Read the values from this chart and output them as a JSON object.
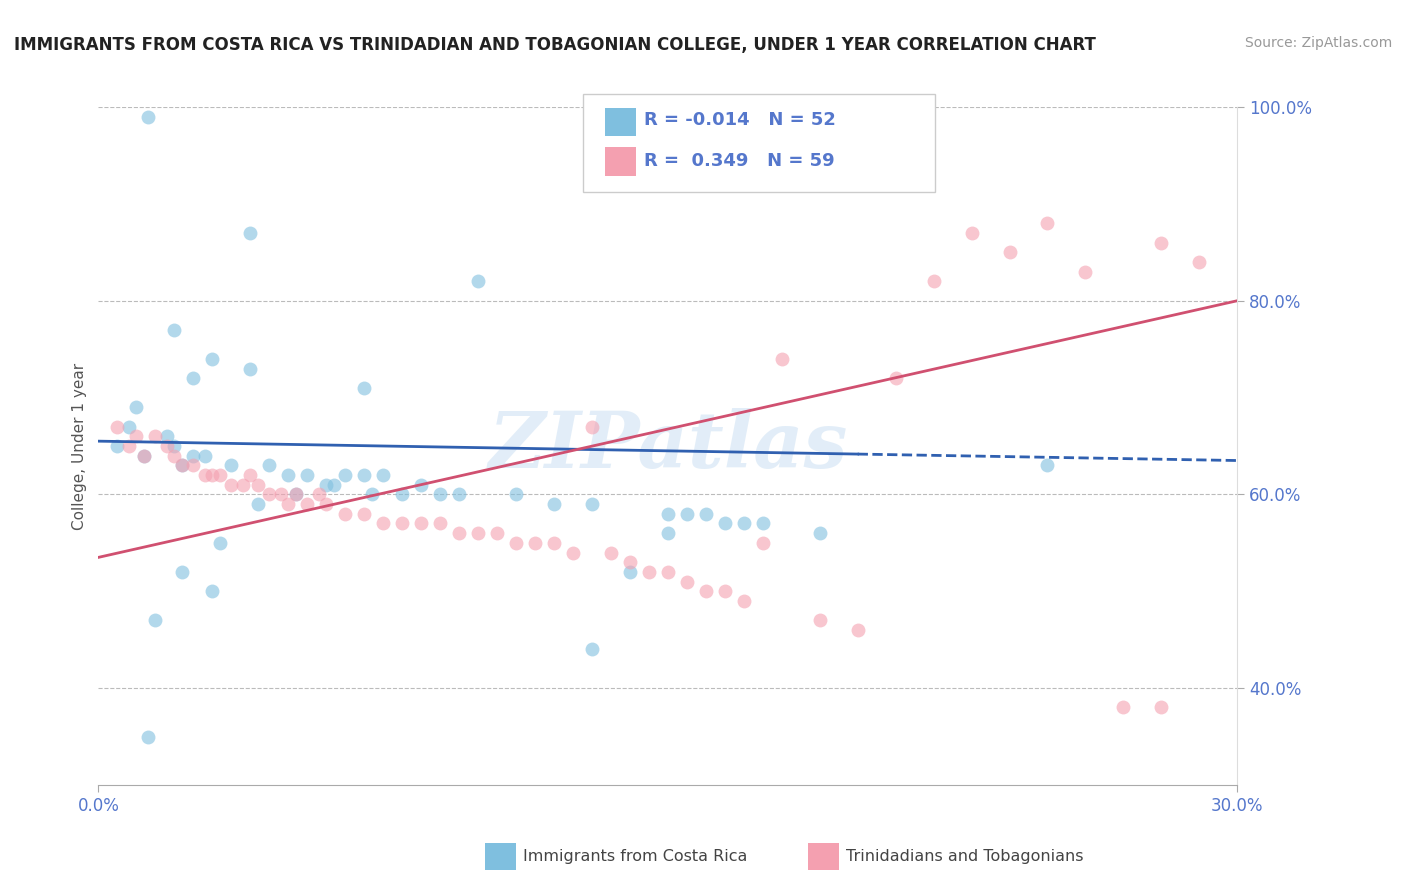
{
  "title": "IMMIGRANTS FROM COSTA RICA VS TRINIDADIAN AND TOBAGONIAN COLLEGE, UNDER 1 YEAR CORRELATION CHART",
  "source": "Source: ZipAtlas.com",
  "ylabel": "College, Under 1 year",
  "xlim": [
    0.0,
    0.3
  ],
  "ylim": [
    0.3,
    1.0
  ],
  "xtick_vals": [
    0.0,
    0.3
  ],
  "xticklabels": [
    "0.0%",
    "30.0%"
  ],
  "ytick_vals": [
    0.4,
    0.6,
    0.8,
    1.0
  ],
  "yticklabels": [
    "40.0%",
    "60.0%",
    "80.0%",
    "100.0%"
  ],
  "grid_ytick_vals": [
    0.4,
    0.6,
    0.8,
    1.0
  ],
  "R_blue": -0.014,
  "N_blue": 52,
  "R_pink": 0.349,
  "N_pink": 59,
  "blue_color": "#7fbfdf",
  "pink_color": "#f4a0b0",
  "blue_line_color": "#3060b0",
  "pink_line_color": "#d05070",
  "tick_color": "#5577cc",
  "watermark": "ZIPatlas",
  "legend_label_blue": "Immigrants from Costa Rica",
  "legend_label_pink": "Trinidadians and Tobagonians",
  "blue_x": [
    0.013,
    0.04,
    0.1,
    0.013,
    0.13,
    0.15,
    0.14,
    0.25,
    0.04,
    0.07,
    0.02,
    0.03,
    0.025,
    0.01,
    0.005,
    0.008,
    0.018,
    0.02,
    0.025,
    0.028,
    0.035,
    0.045,
    0.055,
    0.065,
    0.075,
    0.085,
    0.095,
    0.11,
    0.12,
    0.13,
    0.155,
    0.165,
    0.175,
    0.19,
    0.05,
    0.06,
    0.07,
    0.08,
    0.09,
    0.15,
    0.16,
    0.17,
    0.03,
    0.015,
    0.022,
    0.032,
    0.042,
    0.052,
    0.062,
    0.072,
    0.012,
    0.022
  ],
  "blue_y": [
    0.99,
    0.87,
    0.82,
    0.35,
    0.44,
    0.56,
    0.52,
    0.63,
    0.73,
    0.71,
    0.77,
    0.74,
    0.72,
    0.69,
    0.65,
    0.67,
    0.66,
    0.65,
    0.64,
    0.64,
    0.63,
    0.63,
    0.62,
    0.62,
    0.62,
    0.61,
    0.6,
    0.6,
    0.59,
    0.59,
    0.58,
    0.57,
    0.57,
    0.56,
    0.62,
    0.61,
    0.62,
    0.6,
    0.6,
    0.58,
    0.58,
    0.57,
    0.5,
    0.47,
    0.52,
    0.55,
    0.59,
    0.6,
    0.61,
    0.6,
    0.64,
    0.63
  ],
  "pink_x": [
    0.005,
    0.008,
    0.01,
    0.012,
    0.015,
    0.018,
    0.02,
    0.022,
    0.025,
    0.028,
    0.03,
    0.032,
    0.035,
    0.038,
    0.04,
    0.042,
    0.045,
    0.048,
    0.05,
    0.052,
    0.055,
    0.058,
    0.06,
    0.065,
    0.07,
    0.075,
    0.08,
    0.085,
    0.09,
    0.095,
    0.1,
    0.105,
    0.11,
    0.115,
    0.12,
    0.125,
    0.13,
    0.135,
    0.14,
    0.145,
    0.15,
    0.155,
    0.16,
    0.165,
    0.17,
    0.175,
    0.18,
    0.19,
    0.2,
    0.21,
    0.22,
    0.23,
    0.24,
    0.25,
    0.26,
    0.27,
    0.28,
    0.29,
    0.28
  ],
  "pink_y": [
    0.67,
    0.65,
    0.66,
    0.64,
    0.66,
    0.65,
    0.64,
    0.63,
    0.63,
    0.62,
    0.62,
    0.62,
    0.61,
    0.61,
    0.62,
    0.61,
    0.6,
    0.6,
    0.59,
    0.6,
    0.59,
    0.6,
    0.59,
    0.58,
    0.58,
    0.57,
    0.57,
    0.57,
    0.57,
    0.56,
    0.56,
    0.56,
    0.55,
    0.55,
    0.55,
    0.54,
    0.67,
    0.54,
    0.53,
    0.52,
    0.52,
    0.51,
    0.5,
    0.5,
    0.49,
    0.55,
    0.74,
    0.47,
    0.46,
    0.72,
    0.82,
    0.87,
    0.85,
    0.88,
    0.83,
    0.38,
    0.86,
    0.84,
    0.38
  ]
}
